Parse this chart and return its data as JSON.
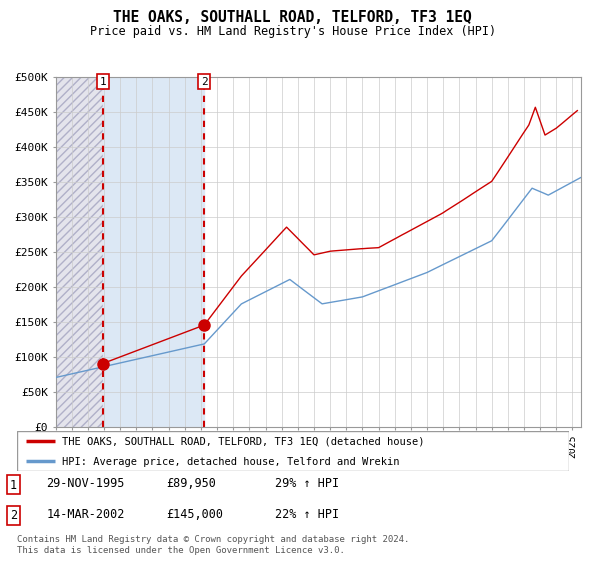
{
  "title": "THE OAKS, SOUTHALL ROAD, TELFORD, TF3 1EQ",
  "subtitle": "Price paid vs. HM Land Registry's House Price Index (HPI)",
  "legend_line1": "THE OAKS, SOUTHALL ROAD, TELFORD, TF3 1EQ (detached house)",
  "legend_line2": "HPI: Average price, detached house, Telford and Wrekin",
  "footnote": "Contains HM Land Registry data © Crown copyright and database right 2024.\nThis data is licensed under the Open Government Licence v3.0.",
  "transaction1": {
    "label": "1",
    "date": "29-NOV-1995",
    "price": 89950,
    "pct": "29% ↑ HPI",
    "x_year": 1995.917
  },
  "transaction2": {
    "label": "2",
    "date": "14-MAR-2002",
    "price": 145000,
    "pct": "22% ↑ HPI",
    "x_year": 2002.208
  },
  "price_line_color": "#cc0000",
  "hpi_line_color": "#6699cc",
  "hatched_region_color": "#e0e0e8",
  "hatch_fill_color": "#dde0ea",
  "between_fill_color": "#dde8f5",
  "grid_color": "#cccccc",
  "ylim": [
    0,
    500000
  ],
  "xlim_start": 1993.0,
  "xlim_end": 2025.5,
  "yticks": [
    0,
    50000,
    100000,
    150000,
    200000,
    250000,
    300000,
    350000,
    400000,
    450000,
    500000
  ],
  "ytick_labels": [
    "£0",
    "£50K",
    "£100K",
    "£150K",
    "£200K",
    "£250K",
    "£300K",
    "£350K",
    "£400K",
    "£450K",
    "£500K"
  ]
}
